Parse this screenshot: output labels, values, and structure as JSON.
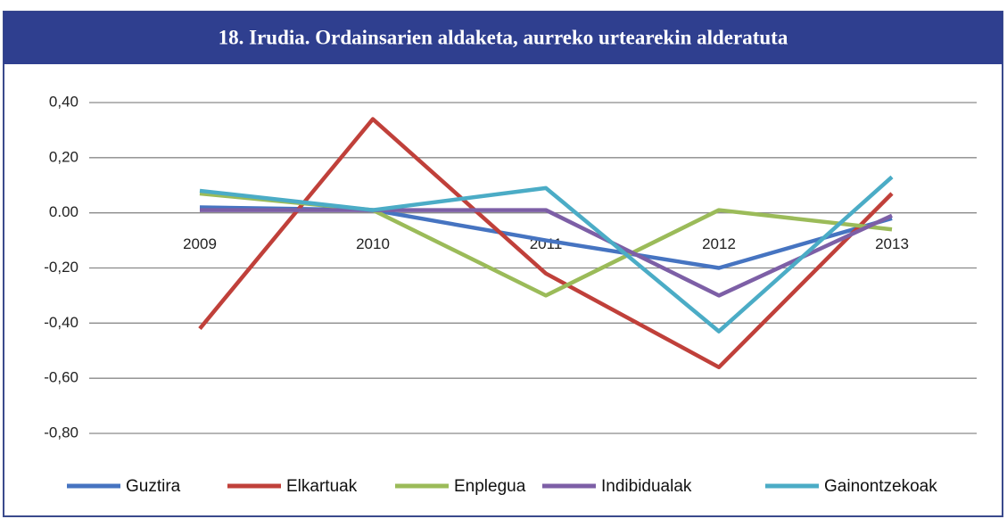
{
  "chart_data": {
    "type": "line",
    "title": "18. Irudia. Ordainsarien aldaketa, aurreko urtearekin alderatuta",
    "categories": [
      "2009",
      "2010",
      "2011",
      "2012",
      "2013"
    ],
    "series": [
      {
        "name": "Guztira",
        "color": "#4674c1",
        "values": [
          0.02,
          0.01,
          -0.1,
          -0.2,
          -0.02
        ]
      },
      {
        "name": "Elkartuak",
        "color": "#c0403a",
        "values": [
          -0.42,
          0.34,
          -0.22,
          -0.56,
          0.07
        ]
      },
      {
        "name": "Enplegua",
        "color": "#9bbb59",
        "values": [
          0.07,
          0.01,
          -0.3,
          0.01,
          -0.06
        ]
      },
      {
        "name": "Indibidualak",
        "color": "#7d5fa6",
        "values": [
          0.01,
          0.01,
          0.01,
          -0.3,
          -0.01
        ]
      },
      {
        "name": "Gainontzekoak",
        "color": "#4bacc6",
        "values": [
          0.08,
          0.01,
          0.09,
          -0.43,
          0.13
        ]
      }
    ],
    "ylim": [
      -0.8,
      0.4
    ],
    "yticks": [
      {
        "value": 0.4,
        "label": "0,40"
      },
      {
        "value": 0.2,
        "label": "0,20"
      },
      {
        "value": 0,
        "label": "0.00"
      },
      {
        "value": -0.2,
        "label": "-0,20"
      },
      {
        "value": -0.4,
        "label": "-0,40"
      },
      {
        "value": -0.6,
        "label": "-0,60"
      },
      {
        "value": -0.8,
        "label": "-0,80"
      }
    ],
    "grid": true,
    "legend": "bottom"
  }
}
